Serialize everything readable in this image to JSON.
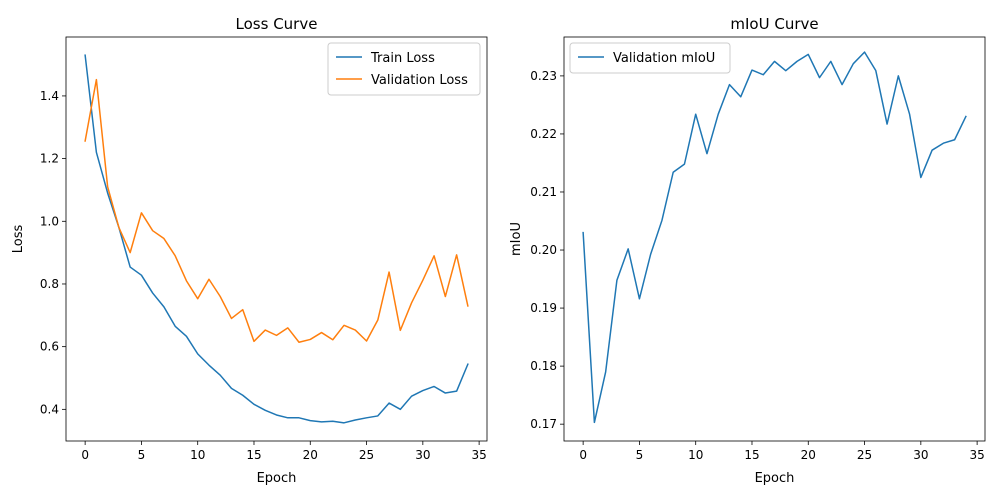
{
  "chart_data": [
    {
      "type": "line",
      "title": "Loss Curve",
      "xlabel": "Epoch",
      "ylabel": "Loss",
      "xlim": [
        -1.7,
        35.7
      ],
      "ylim": [
        0.299,
        1.588
      ],
      "xticks": [
        0,
        5,
        10,
        15,
        20,
        25,
        30,
        35
      ],
      "yticks": [
        0.4,
        0.6,
        0.8,
        1.0,
        1.2,
        1.4
      ],
      "ytick_labels": [
        "0.4",
        "0.6",
        "0.8",
        "1.0",
        "1.2",
        "1.4"
      ],
      "grid": false,
      "legend_position": "top-right",
      "x": [
        0,
        1,
        2,
        3,
        4,
        5,
        6,
        7,
        8,
        9,
        10,
        11,
        12,
        13,
        14,
        15,
        16,
        17,
        18,
        19,
        20,
        21,
        22,
        23,
        24,
        25,
        26,
        27,
        28,
        29,
        30,
        31,
        32,
        33,
        34
      ],
      "series": [
        {
          "name": "Train Loss",
          "color": "#1f77b4",
          "values": [
            1.53,
            1.22,
            1.09,
            0.98,
            0.854,
            0.828,
            0.771,
            0.727,
            0.665,
            0.633,
            0.577,
            0.541,
            0.509,
            0.467,
            0.445,
            0.416,
            0.397,
            0.382,
            0.373,
            0.373,
            0.364,
            0.36,
            0.362,
            0.357,
            0.366,
            0.373,
            0.379,
            0.42,
            0.4,
            0.442,
            0.46,
            0.473,
            0.452,
            0.458,
            0.544
          ]
        },
        {
          "name": "Validation Loss",
          "color": "#ff7f0e",
          "values": [
            1.256,
            1.452,
            1.11,
            0.98,
            0.9,
            1.027,
            0.97,
            0.945,
            0.89,
            0.81,
            0.753,
            0.815,
            0.76,
            0.69,
            0.718,
            0.617,
            0.653,
            0.636,
            0.66,
            0.614,
            0.623,
            0.645,
            0.622,
            0.668,
            0.653,
            0.618,
            0.685,
            0.838,
            0.652,
            0.74,
            0.812,
            0.89,
            0.76,
            0.893,
            0.73
          ]
        }
      ]
    },
    {
      "type": "line",
      "title": "mIoU Curve",
      "xlabel": "Epoch",
      "ylabel": "mIoU",
      "xlim": [
        -1.7,
        35.7
      ],
      "ylim": [
        0.1671,
        0.2367
      ],
      "xticks": [
        0,
        5,
        10,
        15,
        20,
        25,
        30,
        35
      ],
      "yticks": [
        0.17,
        0.18,
        0.19,
        0.2,
        0.21,
        0.22,
        0.23
      ],
      "ytick_labels": [
        "0.17",
        "0.18",
        "0.19",
        "0.20",
        "0.21",
        "0.22",
        "0.23"
      ],
      "grid": false,
      "legend_position": "top-left",
      "x": [
        0,
        1,
        2,
        3,
        4,
        5,
        6,
        7,
        8,
        9,
        10,
        11,
        12,
        13,
        14,
        15,
        16,
        17,
        18,
        19,
        20,
        21,
        22,
        23,
        24,
        25,
        26,
        27,
        28,
        29,
        30,
        31,
        32,
        33,
        34
      ],
      "series": [
        {
          "name": "Validation mIoU",
          "color": "#1f77b4",
          "values": [
            0.203,
            0.1703,
            0.179,
            0.1948,
            0.2002,
            0.1916,
            0.1993,
            0.2051,
            0.2134,
            0.2148,
            0.2234,
            0.2166,
            0.2234,
            0.2285,
            0.2264,
            0.231,
            0.2302,
            0.2325,
            0.2309,
            0.2325,
            0.2337,
            0.2297,
            0.2325,
            0.2285,
            0.2321,
            0.2341,
            0.2309,
            0.2217,
            0.23,
            0.2234,
            0.2125,
            0.2172,
            0.2184,
            0.219,
            0.223
          ]
        }
      ]
    }
  ]
}
